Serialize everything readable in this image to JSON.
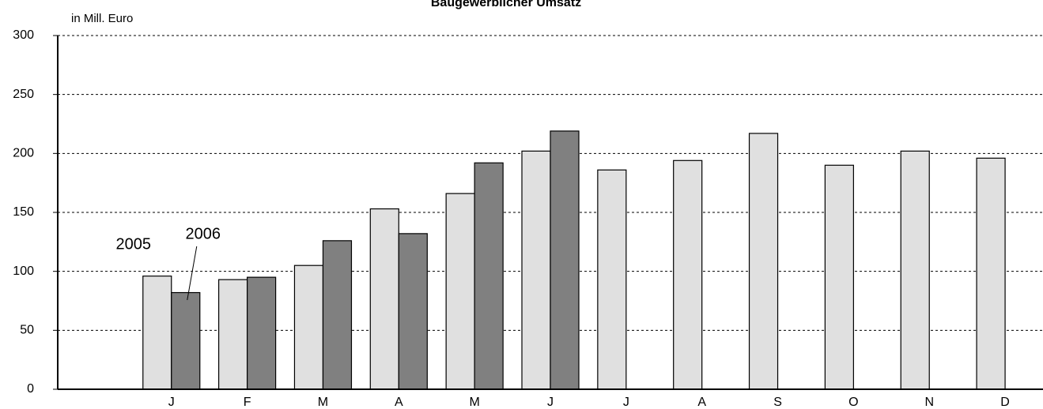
{
  "chart_data": {
    "type": "bar",
    "title": "Baugewerblicher Umsatz",
    "y_label": "in Mill. Euro",
    "categories": [
      null,
      "J",
      "F",
      "M",
      "A",
      "M",
      "J",
      "J",
      "A",
      "S",
      "O",
      "N",
      "D"
    ],
    "series": [
      {
        "name": "2005",
        "color": "#e0e0e0",
        "values": [
          null,
          96,
          93,
          105,
          153,
          166,
          202,
          186,
          194,
          217,
          190,
          202,
          196
        ]
      },
      {
        "name": "2006",
        "color": "#808080",
        "values": [
          null,
          82,
          95,
          126,
          132,
          192,
          219,
          null,
          null,
          null,
          null,
          null,
          null
        ]
      }
    ],
    "ylim": [
      0,
      300
    ],
    "yticks": [
      0,
      50,
      100,
      150,
      200,
      250,
      300
    ],
    "grid": true
  }
}
